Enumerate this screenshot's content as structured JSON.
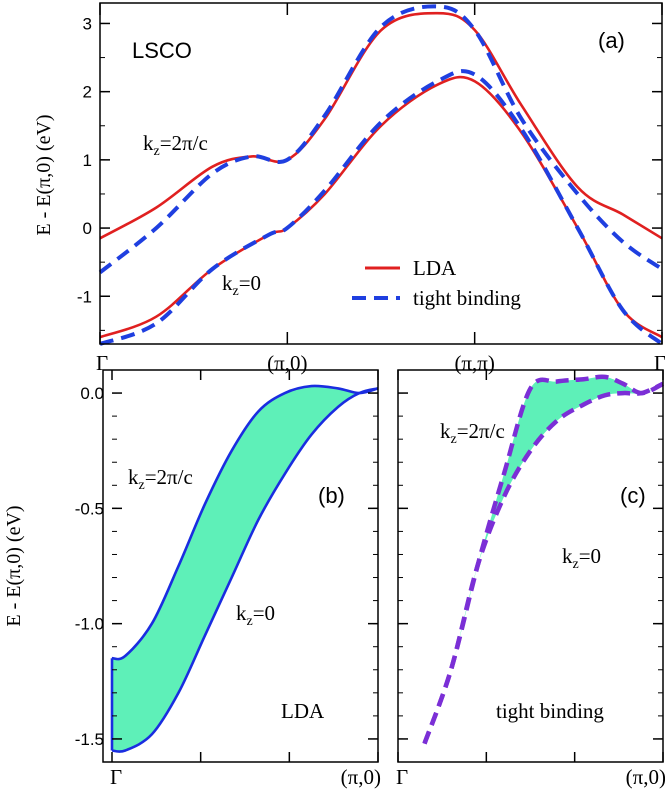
{
  "chart_data": [
    {
      "type": "line",
      "panel_label": "(a)",
      "annotation": "LSCO",
      "ylabel": "E - E(π,0) (eV)",
      "xticks": [
        "Γ",
        "(π,0)",
        "(π,π)",
        "Γ"
      ],
      "yticks": [
        "-1",
        "0",
        "1",
        "2",
        "3"
      ],
      "ylim": [
        -1.7,
        3.3
      ],
      "legend": {
        "position": "lower-right",
        "entries": [
          "LDA",
          "tight binding"
        ]
      },
      "curve_labels": {
        "top": "kz=2π/c",
        "bottom": "kz=0"
      },
      "series": [
        {
          "name": "LDA",
          "kz": "2π/c",
          "color": "#e02020",
          "style": "solid",
          "x": [
            0,
            0.1,
            0.2,
            0.27,
            0.333,
            0.4,
            0.5,
            0.6,
            0.667,
            0.75,
            0.85,
            0.93,
            1.0
          ],
          "values": [
            -0.15,
            0.3,
            0.9,
            1.05,
            1.0,
            1.6,
            2.9,
            3.15,
            2.9,
            1.8,
            0.6,
            0.2,
            -0.15
          ]
        },
        {
          "name": "tight binding",
          "kz": "2π/c",
          "color": "#1f3fe0",
          "style": "dashed",
          "x": [
            0,
            0.1,
            0.2,
            0.27,
            0.333,
            0.4,
            0.5,
            0.6,
            0.667,
            0.75,
            0.85,
            0.93,
            1.0
          ],
          "values": [
            -0.65,
            0.0,
            0.8,
            1.05,
            1.0,
            1.65,
            2.95,
            3.25,
            2.9,
            1.6,
            0.5,
            -0.2,
            -0.6
          ]
        },
        {
          "name": "LDA",
          "kz": "0",
          "color": "#e02020",
          "style": "solid",
          "x": [
            0,
            0.1,
            0.2,
            0.3,
            0.333,
            0.4,
            0.5,
            0.6,
            0.667,
            0.75,
            0.85,
            0.93,
            1.0
          ],
          "values": [
            -1.6,
            -1.3,
            -0.6,
            -0.1,
            0.0,
            0.5,
            1.5,
            2.1,
            2.15,
            1.4,
            0.0,
            -1.2,
            -1.6
          ]
        },
        {
          "name": "tight binding",
          "kz": "0",
          "color": "#1f3fe0",
          "style": "dashed",
          "x": [
            0,
            0.1,
            0.2,
            0.3,
            0.333,
            0.4,
            0.5,
            0.6,
            0.667,
            0.75,
            0.85,
            0.93,
            1.0
          ],
          "values": [
            -1.7,
            -1.4,
            -0.6,
            -0.1,
            0.0,
            0.55,
            1.55,
            2.15,
            2.25,
            1.45,
            0.0,
            -1.2,
            -1.7
          ]
        }
      ]
    },
    {
      "type": "area",
      "panel_label": "(b)",
      "annotation": "LDA",
      "ylabel": "E - E(π,0) (eV)",
      "xticks": [
        "Γ",
        "(π,0)"
      ],
      "yticks": [
        "-1.5",
        "-1.0",
        "-0.5",
        "0.0"
      ],
      "ylim": [
        -1.6,
        0.1
      ],
      "curve_labels": {
        "top": "kz=2π/c",
        "bottom": "kz=0"
      },
      "fill_color": "#5ef0b8",
      "line_color": "#1a2de0",
      "series": [
        {
          "kz": "2π/c",
          "x": [
            0,
            0.05,
            0.15,
            0.25,
            0.35,
            0.45,
            0.55,
            0.65,
            0.75,
            0.85,
            0.93,
            1.0
          ],
          "values": [
            -1.15,
            -1.14,
            -1.0,
            -0.75,
            -0.48,
            -0.25,
            -0.08,
            0.0,
            0.03,
            0.02,
            0.0,
            0.02
          ]
        },
        {
          "kz": "0",
          "x": [
            0,
            0.05,
            0.15,
            0.25,
            0.35,
            0.45,
            0.55,
            0.65,
            0.75,
            0.85,
            0.93,
            1.0
          ],
          "values": [
            -1.55,
            -1.55,
            -1.48,
            -1.3,
            -1.05,
            -0.8,
            -0.55,
            -0.35,
            -0.18,
            -0.06,
            0.0,
            0.02
          ]
        }
      ]
    },
    {
      "type": "area",
      "panel_label": "(c)",
      "annotation": "tight binding",
      "xticks": [
        "Γ",
        "(π,0)"
      ],
      "ylim": [
        -1.6,
        0.1
      ],
      "curve_labels": {
        "top": "kz=2π/c",
        "bottom": "kz=0"
      },
      "fill_color": "#5ef0b8",
      "line_color": "#7b2fd6",
      "series": [
        {
          "kz": "2π/c",
          "x": [
            0.1,
            0.2,
            0.3,
            0.4,
            0.5,
            0.6,
            0.7,
            0.78,
            0.85,
            0.92,
            1.0
          ],
          "values": [
            -1.52,
            -1.2,
            -0.75,
            -0.35,
            0.02,
            0.05,
            0.06,
            0.07,
            0.04,
            0.0,
            0.04
          ]
        },
        {
          "kz": "0",
          "x": [
            0.1,
            0.2,
            0.3,
            0.4,
            0.5,
            0.6,
            0.7,
            0.78,
            0.85,
            0.92,
            1.0
          ],
          "values": [
            -1.52,
            -1.2,
            -0.75,
            -0.45,
            -0.25,
            -0.12,
            -0.05,
            -0.01,
            0.0,
            0.0,
            0.04
          ]
        }
      ]
    }
  ]
}
